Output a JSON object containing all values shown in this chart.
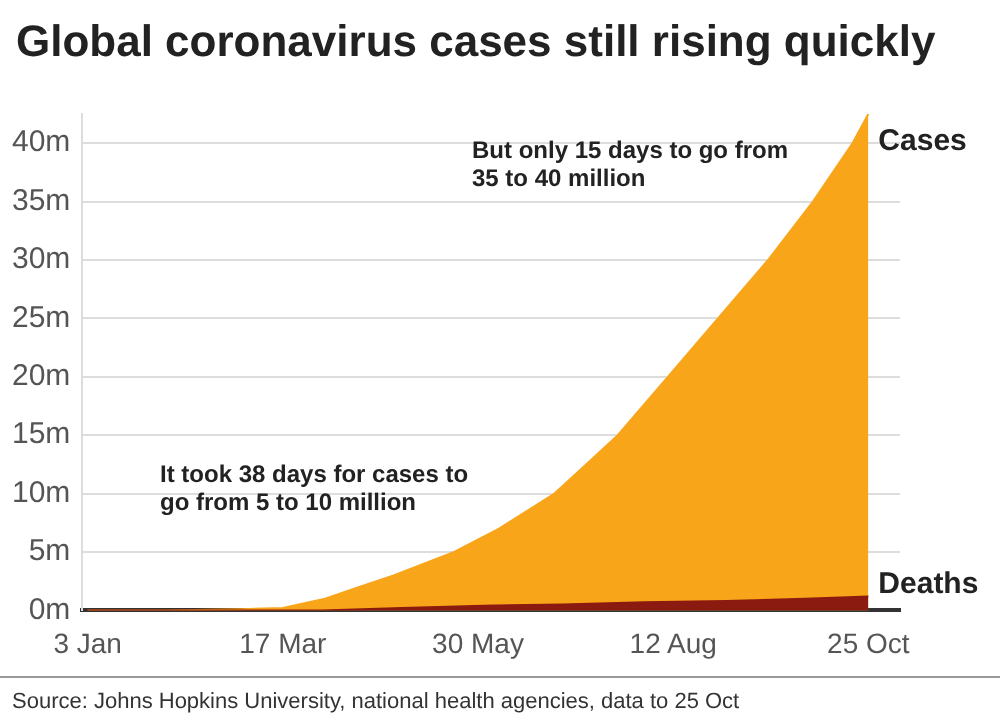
{
  "chart_data": {
    "type": "area",
    "title": "Global coronavirus cases still rising quickly",
    "annotations": [
      "But only 15 days to go from 35 to 40 million",
      "It took 38 days for cases to go from 5 to 10 million",
      "Source: Johns Hopkins University, national health agencies, data to 25 Oct"
    ],
    "series": [
      {
        "name": "Cases",
        "color": "#f9a51a",
        "x": [
          "--01-03",
          "--02-01",
          "--03-01",
          "--03-17",
          "--04-02",
          "--04-15",
          "--04-28",
          "--05-21",
          "--06-07",
          "--06-28",
          "--07-10",
          "--07-22",
          "--08-10",
          "--08-29",
          "--09-17",
          "--10-04",
          "--10-19",
          "--10-25"
        ],
        "values": [
          0,
          0,
          0.1,
          0.2,
          1,
          2,
          3,
          5,
          7,
          10,
          12.5,
          15,
          20,
          25,
          30,
          35,
          40,
          42.5
        ]
      },
      {
        "name": "Deaths",
        "color": "#8b1a10",
        "x": [
          "--01-03",
          "--03-17",
          "--04-01",
          "--05-01",
          "--06-01",
          "--07-01",
          "--08-01",
          "--09-01",
          "--10-01",
          "--10-25"
        ],
        "values": [
          0,
          0,
          0,
          0.2,
          0.4,
          0.5,
          0.7,
          0.8,
          1,
          1.2
        ]
      }
    ],
    "xlim": [
      "--01-01",
      "--11-06"
    ],
    "xticks": [
      {
        "value": "--01-03",
        "label": "3 Jan"
      },
      {
        "value": "--03-17",
        "label": "17 Mar"
      },
      {
        "value": "--05-30",
        "label": "30 May"
      },
      {
        "value": "--08-12",
        "label": "12 Aug"
      },
      {
        "value": "--10-25",
        "label": "25 Oct"
      }
    ],
    "ylim": [
      0,
      42.5
    ],
    "yticks": [
      {
        "value": 0,
        "label": "0m"
      },
      {
        "value": 5,
        "label": "5m"
      },
      {
        "value": 10,
        "label": "10m"
      },
      {
        "value": 15,
        "label": "15m"
      },
      {
        "value": 20,
        "label": "20m"
      },
      {
        "value": 25,
        "label": "25m"
      },
      {
        "value": 30,
        "label": "30m"
      },
      {
        "value": 35,
        "label": "35m"
      },
      {
        "value": 40,
        "label": "40m"
      }
    ],
    "grid": "y",
    "legend": false,
    "marker": "none",
    "line_style": "solid"
  }
}
